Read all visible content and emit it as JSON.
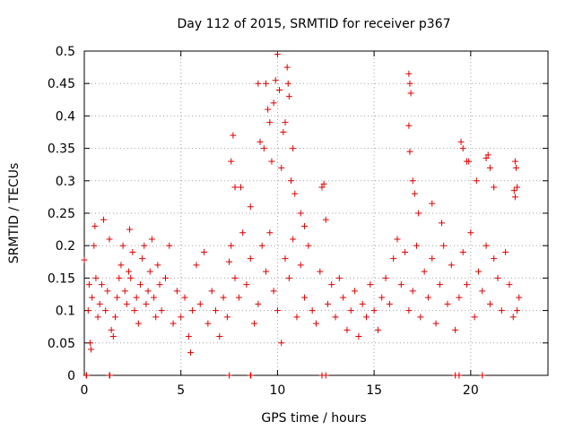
{
  "chart_data": {
    "type": "scatter",
    "title": "Day 112 of 2015, SRMTID for receiver p367",
    "xlabel": "GPS time / hours",
    "ylabel": "SRMTID / TECUs",
    "xlim": [
      0,
      24
    ],
    "ylim": [
      0,
      0.5
    ],
    "grid": true,
    "x_ticks": [
      0,
      5,
      10,
      15,
      20
    ],
    "x_tick_labels": [
      "0",
      "5",
      "10",
      "15",
      "20"
    ],
    "y_ticks": [
      0,
      0.05,
      0.1,
      0.15,
      0.2,
      0.25,
      0.3,
      0.35,
      0.4,
      0.45,
      0.5
    ],
    "y_tick_labels": [
      "0",
      "0.05",
      "0.1",
      "0.15",
      "0.2",
      "0.25",
      "0.3",
      "0.35",
      "0.4",
      "0.45",
      "0.5"
    ],
    "marker": "+",
    "color": "#e00000",
    "series": [
      {
        "name": "SRMTID",
        "points": [
          [
            0.0,
            0.178
          ],
          [
            0.1,
            0.0
          ],
          [
            0.12,
            0.0
          ],
          [
            1.3,
            0.0
          ],
          [
            1.32,
            0.0
          ],
          [
            7.5,
            0.0
          ],
          [
            8.6,
            0.0
          ],
          [
            8.62,
            0.0
          ],
          [
            12.3,
            0.0
          ],
          [
            12.5,
            0.0
          ],
          [
            19.2,
            0.0
          ],
          [
            19.4,
            0.0
          ],
          [
            20.6,
            0.0
          ],
          [
            2.35,
            0.225
          ],
          [
            7.5,
            0.175
          ],
          [
            7.6,
            0.33
          ],
          [
            7.7,
            0.37
          ],
          [
            7.8,
            0.29
          ],
          [
            8.1,
            0.29
          ],
          [
            8.6,
            0.26
          ],
          [
            9.0,
            0.45
          ],
          [
            9.1,
            0.36
          ],
          [
            9.3,
            0.35
          ],
          [
            9.4,
            0.45
          ],
          [
            9.5,
            0.41
          ],
          [
            9.6,
            0.39
          ],
          [
            9.7,
            0.33
          ],
          [
            9.8,
            0.42
          ],
          [
            9.9,
            0.455
          ],
          [
            10.0,
            0.495
          ],
          [
            10.1,
            0.44
          ],
          [
            10.3,
            0.375
          ],
          [
            10.4,
            0.39
          ],
          [
            10.5,
            0.475
          ],
          [
            10.55,
            0.45
          ],
          [
            10.6,
            0.43
          ],
          [
            10.2,
            0.32
          ],
          [
            10.7,
            0.3
          ],
          [
            10.8,
            0.35
          ],
          [
            10.9,
            0.28
          ],
          [
            11.2,
            0.25
          ],
          [
            11.4,
            0.23
          ],
          [
            12.3,
            0.29
          ],
          [
            12.4,
            0.295
          ],
          [
            12.5,
            0.24
          ],
          [
            16.8,
            0.465
          ],
          [
            16.85,
            0.45
          ],
          [
            16.9,
            0.435
          ],
          [
            16.8,
            0.385
          ],
          [
            16.85,
            0.345
          ],
          [
            17.0,
            0.3
          ],
          [
            17.1,
            0.28
          ],
          [
            17.3,
            0.25
          ],
          [
            18.0,
            0.265
          ],
          [
            18.5,
            0.235
          ],
          [
            19.5,
            0.36
          ],
          [
            19.6,
            0.35
          ],
          [
            19.8,
            0.33
          ],
          [
            19.9,
            0.33
          ],
          [
            20.3,
            0.3
          ],
          [
            20.8,
            0.335
          ],
          [
            20.9,
            0.34
          ],
          [
            21.0,
            0.32
          ],
          [
            21.2,
            0.29
          ],
          [
            22.3,
            0.33
          ],
          [
            22.35,
            0.32
          ],
          [
            22.4,
            0.29
          ],
          [
            22.25,
            0.285
          ],
          [
            22.3,
            0.275
          ],
          [
            0.2,
            0.1
          ],
          [
            0.25,
            0.14
          ],
          [
            0.3,
            0.05
          ],
          [
            0.35,
            0.04
          ],
          [
            0.4,
            0.12
          ],
          [
            0.5,
            0.2
          ],
          [
            0.55,
            0.23
          ],
          [
            0.6,
            0.15
          ],
          [
            0.7,
            0.09
          ],
          [
            0.8,
            0.11
          ],
          [
            0.9,
            0.14
          ],
          [
            1.0,
            0.24
          ],
          [
            1.1,
            0.1
          ],
          [
            1.2,
            0.13
          ],
          [
            1.3,
            0.21
          ],
          [
            1.4,
            0.07
          ],
          [
            1.5,
            0.06
          ],
          [
            1.6,
            0.09
          ],
          [
            1.7,
            0.12
          ],
          [
            1.8,
            0.15
          ],
          [
            1.9,
            0.17
          ],
          [
            2.0,
            0.2
          ],
          [
            2.1,
            0.13
          ],
          [
            2.2,
            0.11
          ],
          [
            2.3,
            0.16
          ],
          [
            2.4,
            0.15
          ],
          [
            2.5,
            0.19
          ],
          [
            2.6,
            0.1
          ],
          [
            2.7,
            0.12
          ],
          [
            2.8,
            0.08
          ],
          [
            2.9,
            0.14
          ],
          [
            3.0,
            0.18
          ],
          [
            3.1,
            0.2
          ],
          [
            3.2,
            0.11
          ],
          [
            3.3,
            0.13
          ],
          [
            3.4,
            0.16
          ],
          [
            3.5,
            0.21
          ],
          [
            3.6,
            0.12
          ],
          [
            3.7,
            0.09
          ],
          [
            3.8,
            0.17
          ],
          [
            3.9,
            0.14
          ],
          [
            4.0,
            0.1
          ],
          [
            4.2,
            0.15
          ],
          [
            4.4,
            0.2
          ],
          [
            4.6,
            0.08
          ],
          [
            4.8,
            0.13
          ],
          [
            5.0,
            0.09
          ],
          [
            5.2,
            0.12
          ],
          [
            5.4,
            0.06
          ],
          [
            5.5,
            0.035
          ],
          [
            5.6,
            0.1
          ],
          [
            5.8,
            0.17
          ],
          [
            6.0,
            0.11
          ],
          [
            6.2,
            0.19
          ],
          [
            6.4,
            0.08
          ],
          [
            6.6,
            0.13
          ],
          [
            6.8,
            0.1
          ],
          [
            7.0,
            0.06
          ],
          [
            7.2,
            0.12
          ],
          [
            7.4,
            0.09
          ],
          [
            7.6,
            0.2
          ],
          [
            7.8,
            0.15
          ],
          [
            8.0,
            0.12
          ],
          [
            8.2,
            0.22
          ],
          [
            8.4,
            0.14
          ],
          [
            8.6,
            0.18
          ],
          [
            8.8,
            0.08
          ],
          [
            9.0,
            0.11
          ],
          [
            9.2,
            0.2
          ],
          [
            9.4,
            0.16
          ],
          [
            9.6,
            0.22
          ],
          [
            9.8,
            0.13
          ],
          [
            10.0,
            0.1
          ],
          [
            10.2,
            0.05
          ],
          [
            10.4,
            0.18
          ],
          [
            10.6,
            0.15
          ],
          [
            10.8,
            0.21
          ],
          [
            11.0,
            0.09
          ],
          [
            11.2,
            0.17
          ],
          [
            11.4,
            0.12
          ],
          [
            11.6,
            0.2
          ],
          [
            11.8,
            0.1
          ],
          [
            12.0,
            0.08
          ],
          [
            12.2,
            0.16
          ],
          [
            12.6,
            0.11
          ],
          [
            12.8,
            0.14
          ],
          [
            13.0,
            0.09
          ],
          [
            13.2,
            0.15
          ],
          [
            13.4,
            0.12
          ],
          [
            13.6,
            0.07
          ],
          [
            13.8,
            0.1
          ],
          [
            14.0,
            0.13
          ],
          [
            14.2,
            0.06
          ],
          [
            14.4,
            0.11
          ],
          [
            14.6,
            0.09
          ],
          [
            14.8,
            0.14
          ],
          [
            15.0,
            0.1
          ],
          [
            15.2,
            0.07
          ],
          [
            15.4,
            0.12
          ],
          [
            15.6,
            0.15
          ],
          [
            15.8,
            0.11
          ],
          [
            16.0,
            0.18
          ],
          [
            16.2,
            0.21
          ],
          [
            16.4,
            0.14
          ],
          [
            16.6,
            0.19
          ],
          [
            16.8,
            0.1
          ],
          [
            17.0,
            0.13
          ],
          [
            17.2,
            0.2
          ],
          [
            17.4,
            0.09
          ],
          [
            17.6,
            0.16
          ],
          [
            17.8,
            0.12
          ],
          [
            18.0,
            0.18
          ],
          [
            18.2,
            0.08
          ],
          [
            18.4,
            0.14
          ],
          [
            18.6,
            0.2
          ],
          [
            18.8,
            0.11
          ],
          [
            19.0,
            0.17
          ],
          [
            19.2,
            0.07
          ],
          [
            19.4,
            0.12
          ],
          [
            19.6,
            0.19
          ],
          [
            19.8,
            0.14
          ],
          [
            20.0,
            0.22
          ],
          [
            20.2,
            0.09
          ],
          [
            20.4,
            0.16
          ],
          [
            20.6,
            0.13
          ],
          [
            20.8,
            0.2
          ],
          [
            21.0,
            0.11
          ],
          [
            21.2,
            0.18
          ],
          [
            21.4,
            0.15
          ],
          [
            21.6,
            0.1
          ],
          [
            21.8,
            0.19
          ],
          [
            22.0,
            0.14
          ],
          [
            22.2,
            0.09
          ],
          [
            22.4,
            0.1
          ],
          [
            22.5,
            0.12
          ]
        ]
      }
    ]
  }
}
